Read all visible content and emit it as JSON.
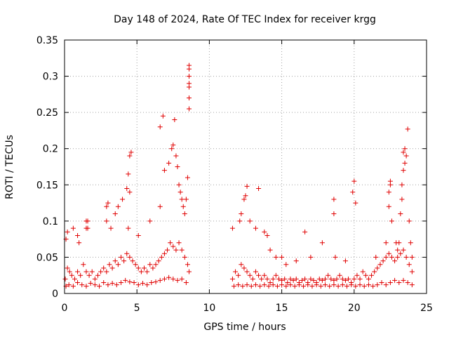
{
  "chart_data": {
    "type": "scatter",
    "title": "Day 148 of 2024, Rate Of TEC Index for receiver krgg",
    "xlabel": "GPS time / hours",
    "ylabel": "ROTI / TECUs",
    "xlim": [
      0,
      25
    ],
    "ylim": [
      0,
      0.35
    ],
    "x_ticks": [
      0,
      5,
      10,
      15,
      20,
      25
    ],
    "x_tick_labels": [
      "0",
      "5",
      "10",
      "15",
      "20",
      "25"
    ],
    "y_ticks": [
      0,
      0.05,
      0.1,
      0.15,
      0.2,
      0.25,
      0.3,
      0.35
    ],
    "y_tick_labels": [
      "0",
      "0.05",
      "0.1",
      "0.15",
      "0.2",
      "0.25",
      "0.3",
      "0.35"
    ],
    "grid": true,
    "marker": "+",
    "marker_color": "#e00000",
    "series": [
      {
        "x": [
          0.05,
          0.2,
          0.35,
          0.5,
          0.7,
          0.9,
          1.1,
          1.3,
          1.5,
          1.7,
          1.9,
          2.1,
          2.3,
          2.5,
          2.7,
          2.9,
          3.1,
          3.3,
          3.5,
          3.7,
          3.9,
          4.1,
          4.3,
          4.5,
          4.7,
          4.9,
          5.1,
          5.3,
          5.5,
          5.7,
          5.9,
          6.1,
          6.3,
          6.5,
          6.7,
          6.9,
          7.1,
          7.3,
          7.5,
          7.7,
          7.9,
          8.1,
          8.3,
          8.5,
          8.6,
          0.1,
          0.3,
          0.6,
          0.9,
          1.2,
          1.5,
          1.8,
          2.1,
          2.4,
          2.7,
          3.0,
          3.3,
          3.6,
          3.9,
          4.2,
          4.5,
          4.8,
          5.1,
          5.4,
          5.7,
          6.0,
          6.3,
          6.6,
          6.9,
          7.2,
          7.5,
          7.8,
          8.1,
          8.4,
          0.1,
          0.2,
          0.6,
          0.9,
          1.0,
          1.5,
          1.6,
          2.9,
          3.0,
          3.5,
          3.7,
          4.0,
          4.3,
          4.4,
          4.5,
          4.6,
          5.1,
          5.9,
          6.6,
          6.8,
          6.9,
          7.2,
          7.4,
          7.5,
          7.6,
          7.7,
          7.8,
          7.9,
          8.0,
          8.1,
          8.2,
          8.3,
          8.4,
          8.5,
          8.6,
          8.6,
          8.6,
          8.6,
          8.6,
          8.6,
          8.6,
          6.6,
          4.5,
          4.4,
          2.9,
          3.2,
          1.5,
          1.6,
          11.6,
          11.8,
          12.0,
          12.2,
          12.4,
          12.6,
          12.8,
          13.0,
          13.2,
          13.4,
          13.6,
          13.8,
          14.0,
          14.2,
          14.4,
          14.6,
          14.8,
          15.0,
          15.2,
          15.4,
          15.6,
          15.8,
          16.0,
          16.2,
          16.4,
          16.6,
          16.8,
          17.0,
          17.2,
          17.4,
          17.6,
          17.8,
          18.0,
          18.2,
          18.4,
          18.6,
          18.8,
          19.0,
          19.2,
          19.4,
          19.6,
          19.8,
          20.0,
          20.2,
          20.4,
          20.6,
          20.8,
          21.0,
          21.2,
          21.4,
          21.6,
          21.8,
          22.0,
          22.2,
          22.4,
          22.6,
          22.8,
          23.0,
          23.2,
          23.4,
          23.6,
          23.8,
          24.0,
          11.7,
          12.0,
          12.3,
          12.6,
          12.9,
          13.2,
          13.5,
          13.8,
          14.1,
          14.4,
          14.7,
          15.0,
          15.3,
          15.6,
          15.9,
          16.2,
          16.5,
          16.8,
          17.1,
          17.4,
          17.7,
          18.0,
          18.3,
          18.6,
          18.9,
          19.2,
          19.5,
          19.8,
          20.1,
          20.4,
          20.7,
          21.0,
          21.3,
          21.6,
          21.9,
          22.2,
          22.5,
          22.8,
          23.1,
          23.4,
          23.7,
          24.0,
          11.6,
          12.1,
          12.2,
          12.4,
          12.5,
          12.6,
          12.8,
          13.2,
          13.4,
          13.8,
          14.0,
          14.2,
          14.6,
          15.0,
          15.3,
          16.0,
          16.6,
          17.0,
          17.8,
          18.6,
          18.6,
          18.7,
          19.4,
          19.9,
          20.0,
          20.1,
          21.5,
          22.2,
          22.4,
          22.4,
          22.5,
          22.5,
          22.6,
          22.9,
          23.0,
          23.1,
          23.2,
          23.3,
          23.3,
          23.4,
          23.4,
          23.5,
          23.5,
          23.6,
          23.7,
          23.8,
          23.9,
          24.0
        ],
        "y": [
          0.02,
          0.035,
          0.03,
          0.025,
          0.02,
          0.03,
          0.025,
          0.04,
          0.03,
          0.025,
          0.03,
          0.02,
          0.025,
          0.03,
          0.035,
          0.03,
          0.04,
          0.035,
          0.045,
          0.04,
          0.05,
          0.045,
          0.055,
          0.05,
          0.045,
          0.04,
          0.035,
          0.03,
          0.035,
          0.03,
          0.04,
          0.035,
          0.04,
          0.045,
          0.05,
          0.055,
          0.06,
          0.07,
          0.065,
          0.06,
          0.07,
          0.06,
          0.05,
          0.04,
          0.03,
          0.01,
          0.012,
          0.01,
          0.015,
          0.012,
          0.01,
          0.014,
          0.012,
          0.01,
          0.015,
          0.012,
          0.014,
          0.012,
          0.015,
          0.018,
          0.016,
          0.015,
          0.012,
          0.014,
          0.012,
          0.015,
          0.016,
          0.018,
          0.02,
          0.022,
          0.02,
          0.018,
          0.02,
          0.015,
          0.075,
          0.085,
          0.09,
          0.08,
          0.07,
          0.1,
          0.09,
          0.12,
          0.125,
          0.11,
          0.12,
          0.13,
          0.145,
          0.165,
          0.19,
          0.195,
          0.08,
          0.1,
          0.23,
          0.245,
          0.17,
          0.18,
          0.2,
          0.205,
          0.24,
          0.19,
          0.175,
          0.15,
          0.14,
          0.13,
          0.12,
          0.11,
          0.13,
          0.16,
          0.255,
          0.27,
          0.285,
          0.3,
          0.31,
          0.315,
          0.29,
          0.12,
          0.14,
          0.09,
          0.1,
          0.09,
          0.09,
          0.1,
          0.02,
          0.03,
          0.025,
          0.04,
          0.035,
          0.03,
          0.025,
          0.02,
          0.03,
          0.025,
          0.02,
          0.025,
          0.02,
          0.015,
          0.02,
          0.025,
          0.02,
          0.018,
          0.02,
          0.015,
          0.02,
          0.018,
          0.02,
          0.015,
          0.018,
          0.02,
          0.015,
          0.02,
          0.018,
          0.015,
          0.02,
          0.018,
          0.02,
          0.025,
          0.02,
          0.018,
          0.02,
          0.025,
          0.02,
          0.018,
          0.02,
          0.015,
          0.02,
          0.025,
          0.02,
          0.03,
          0.025,
          0.02,
          0.025,
          0.03,
          0.035,
          0.04,
          0.045,
          0.05,
          0.055,
          0.05,
          0.045,
          0.05,
          0.055,
          0.06,
          0.05,
          0.04,
          0.03,
          0.01,
          0.012,
          0.01,
          0.012,
          0.01,
          0.012,
          0.01,
          0.012,
          0.01,
          0.012,
          0.01,
          0.012,
          0.01,
          0.012,
          0.01,
          0.012,
          0.01,
          0.012,
          0.01,
          0.012,
          0.01,
          0.012,
          0.01,
          0.012,
          0.01,
          0.012,
          0.01,
          0.012,
          0.01,
          0.012,
          0.01,
          0.012,
          0.01,
          0.012,
          0.015,
          0.012,
          0.015,
          0.018,
          0.015,
          0.018,
          0.015,
          0.012,
          0.09,
          0.1,
          0.11,
          0.13,
          0.135,
          0.148,
          0.1,
          0.09,
          0.145,
          0.085,
          0.08,
          0.06,
          0.05,
          0.05,
          0.04,
          0.045,
          0.085,
          0.05,
          0.07,
          0.11,
          0.13,
          0.05,
          0.045,
          0.14,
          0.155,
          0.125,
          0.05,
          0.07,
          0.12,
          0.14,
          0.15,
          0.155,
          0.1,
          0.07,
          0.06,
          0.07,
          0.11,
          0.13,
          0.15,
          0.17,
          0.195,
          0.2,
          0.18,
          0.19,
          0.227,
          0.1,
          0.07,
          0.05
        ]
      }
    ]
  }
}
